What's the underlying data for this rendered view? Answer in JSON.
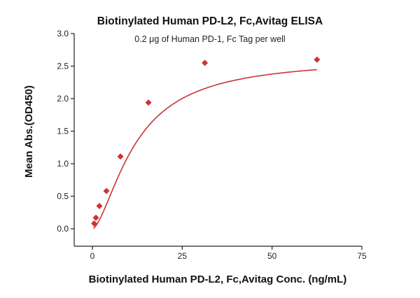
{
  "chart_data": {
    "type": "scatter",
    "title": "Biotinylated Human PD-L2, Fc,Avitag ELISA",
    "subtitle": "0.2 μg of Human PD-1, Fc Tag per well",
    "xlabel": "Biotinylated Human PD-L2, Fc,Avitag Conc. (ng/mL)",
    "ylabel": "Mean Abs.(OD450)",
    "xlim": [
      0,
      75
    ],
    "ylim": [
      0,
      3.0
    ],
    "x_ticks": [
      "0",
      "25",
      "50",
      "75"
    ],
    "y_ticks": [
      "0.0",
      "0.5",
      "1.0",
      "1.5",
      "2.0",
      "2.5",
      "3.0"
    ],
    "grid": false,
    "legend": "none",
    "series": [
      {
        "marker": "diamond",
        "color": "#cc3333",
        "x": [
          0.49,
          0.98,
          1.95,
          3.9,
          7.8,
          15.6,
          31.3,
          62.5
        ],
        "y": [
          0.08,
          0.17,
          0.35,
          0.58,
          1.11,
          1.94,
          2.55,
          2.6
        ]
      }
    ],
    "fit_curve": {
      "color": "#cc3333",
      "type": "sigmoidal-fit"
    }
  }
}
